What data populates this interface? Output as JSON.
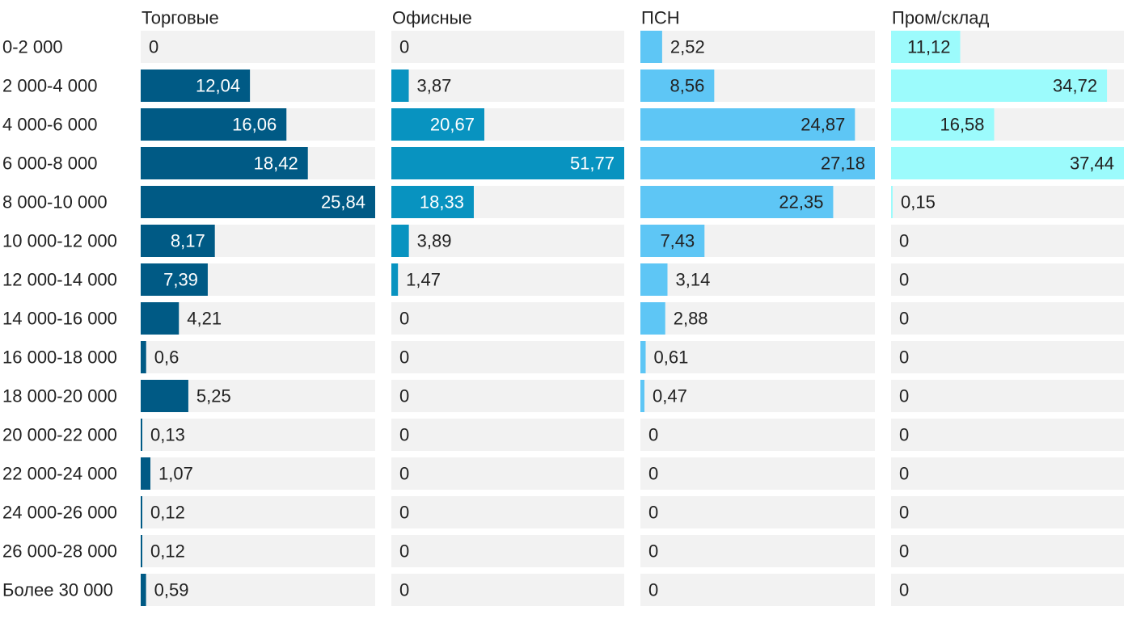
{
  "chart_data": {
    "type": "bar",
    "orientation": "horizontal",
    "layout": "small-multiples",
    "categories": [
      "0-2 000",
      "2 000-4 000",
      "4 000-6 000",
      "6 000-8 000",
      "8 000-10 000",
      "10 000-12 000",
      "12 000-14 000",
      "14 000-16 000",
      "16 000-18 000",
      "18 000-20 000",
      "20 000-22 000",
      "22 000-24 000",
      "24 000-26 000",
      "26 000-28 000",
      "Более 30 000"
    ],
    "series": [
      {
        "name": "Торговые",
        "color": "#005a85",
        "label_inside_color": "#ffffff",
        "max": 25.84,
        "values": [
          0,
          12.04,
          16.06,
          18.42,
          25.84,
          8.17,
          7.39,
          4.21,
          0.6,
          5.25,
          0.13,
          1.07,
          0.12,
          0.12,
          0.59
        ],
        "labels": [
          "0",
          "12,04",
          "16,06",
          "18,42",
          "25,84",
          "8,17",
          "7,39",
          "4,21",
          "0,6",
          "5,25",
          "0,13",
          "1,07",
          "0,12",
          "0,12",
          "0,59"
        ]
      },
      {
        "name": "Офисные",
        "color": "#0893c0",
        "label_inside_color": "#ffffff",
        "max": 51.77,
        "values": [
          0,
          3.87,
          20.67,
          51.77,
          18.33,
          3.89,
          1.47,
          0,
          0,
          0,
          0,
          0,
          0,
          0,
          0
        ],
        "labels": [
          "0",
          "3,87",
          "20,67",
          "51,77",
          "18,33",
          "3,89",
          "1,47",
          "0",
          "0",
          "0",
          "0",
          "0",
          "0",
          "0",
          "0"
        ]
      },
      {
        "name": "ПСН",
        "color": "#5ec6f5",
        "label_inside_color": "#222222",
        "max": 27.18,
        "values": [
          2.52,
          8.56,
          24.87,
          27.18,
          22.35,
          7.43,
          3.14,
          2.88,
          0.61,
          0.47,
          0,
          0,
          0,
          0,
          0
        ],
        "labels": [
          "2,52",
          "8,56",
          "24,87",
          "27,18",
          "22,35",
          "7,43",
          "3,14",
          "2,88",
          "0,61",
          "0,47",
          "0",
          "0",
          "0",
          "0",
          "0"
        ]
      },
      {
        "name": "Пром/склад",
        "color": "#9cfbfc",
        "label_inside_color": "#222222",
        "max": 37.44,
        "values": [
          11.12,
          34.72,
          16.58,
          37.44,
          0.15,
          0,
          0,
          0,
          0,
          0,
          0,
          0,
          0,
          0,
          0
        ],
        "labels": [
          "11,12",
          "34,72",
          "16,58",
          "37,44",
          "0,15",
          "0",
          "0",
          "0",
          "0",
          "0",
          "0",
          "0",
          "0",
          "0",
          "0"
        ]
      }
    ],
    "title": "",
    "xlabel": "",
    "ylabel": "",
    "grid": false,
    "legend": "none"
  }
}
